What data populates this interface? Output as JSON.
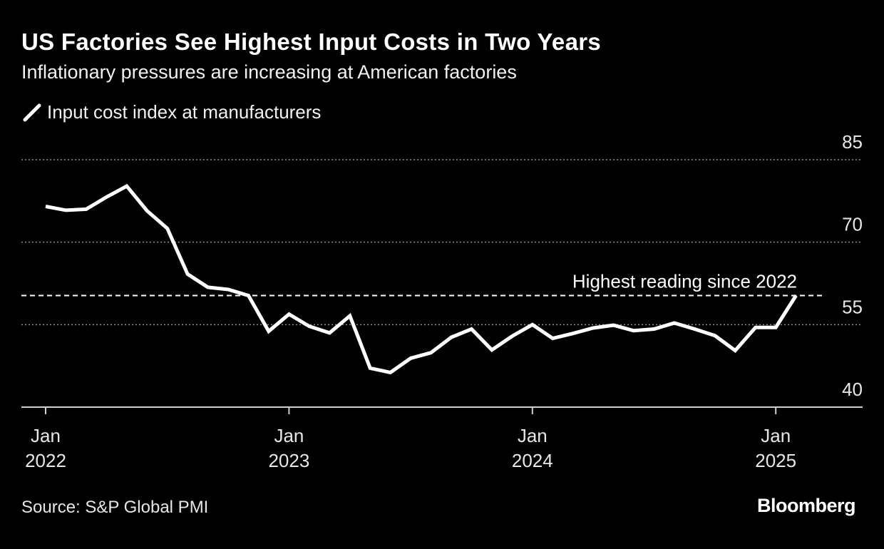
{
  "header": {
    "title": "US Factories See Highest Input Costs in Two Years",
    "subtitle": "Inflationary pressures are increasing at American factories"
  },
  "footer": {
    "source": "Source: S&P Global PMI",
    "brand": "Bloomberg"
  },
  "colors": {
    "background": "#000000",
    "line": "#ffffff",
    "grid": "#8a8a8a",
    "text": "#ffffff"
  },
  "chart_data": {
    "type": "line",
    "title": "US Factories See Highest Input Costs in Two Years",
    "subtitle": "Inflationary pressures are increasing at American factories",
    "xlabel": "",
    "ylabel": "",
    "ylim": [
      40,
      85
    ],
    "yticks": [
      85,
      70,
      55,
      40
    ],
    "xticks": [
      {
        "index": 0,
        "month": "Jan",
        "year": "2022"
      },
      {
        "index": 12,
        "month": "Jan",
        "year": "2023"
      },
      {
        "index": 24,
        "month": "Jan",
        "year": "2024"
      },
      {
        "index": 36,
        "month": "Jan",
        "year": "2025"
      }
    ],
    "grid": true,
    "legend_position": "top-left",
    "series": [
      {
        "name": "Input cost index at manufacturers",
        "x": [
          "Jan 2022",
          "Feb 2022",
          "Mar 2022",
          "Apr 2022",
          "May 2022",
          "Jun 2022",
          "Jul 2022",
          "Aug 2022",
          "Sep 2022",
          "Oct 2022",
          "Nov 2022",
          "Dec 2022",
          "Jan 2023",
          "Feb 2023",
          "Mar 2023",
          "Apr 2023",
          "May 2023",
          "Jun 2023",
          "Jul 2023",
          "Aug 2023",
          "Sep 2023",
          "Oct 2023",
          "Nov 2023",
          "Dec 2023",
          "Jan 2024",
          "Feb 2024",
          "Mar 2024",
          "Apr 2024",
          "May 2024",
          "Jun 2024",
          "Jul 2024",
          "Aug 2024",
          "Sep 2024",
          "Oct 2024",
          "Nov 2024",
          "Dec 2024",
          "Jan 2025",
          "Feb 2025"
        ],
        "values": [
          76.5,
          75.8,
          76.0,
          78.2,
          80.2,
          75.7,
          72.5,
          64.2,
          61.8,
          61.4,
          60.3,
          53.8,
          56.9,
          54.7,
          53.5,
          56.6,
          47.1,
          46.3,
          48.9,
          49.9,
          52.7,
          54.2,
          50.4,
          52.9,
          55.0,
          52.5,
          53.4,
          54.4,
          54.9,
          53.9,
          54.2,
          55.3,
          54.2,
          53.0,
          50.3,
          54.5,
          54.5,
          60.3
        ]
      }
    ],
    "annotations": [
      {
        "text": "Highest reading since 2022",
        "y": 60.3,
        "style": "dashed-horizontal-line"
      }
    ]
  }
}
